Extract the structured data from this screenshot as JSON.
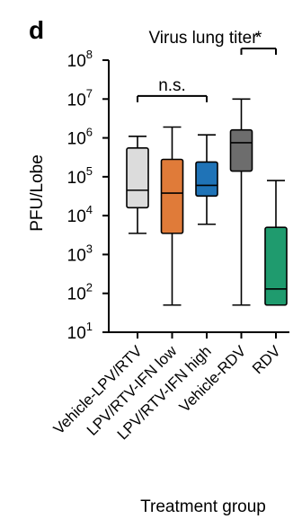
{
  "panel_label": "d",
  "chart_data": {
    "type": "box",
    "title": "Virus lung titer",
    "xlabel": "Treatment group",
    "ylabel": "PFU/Lobe",
    "yscale": "log",
    "ylim": [
      10,
      100000000
    ],
    "yticks": [
      {
        "value": 10,
        "mant": "10",
        "exp": "1"
      },
      {
        "value": 100,
        "mant": "10",
        "exp": "2"
      },
      {
        "value": 1000,
        "mant": "10",
        "exp": "3"
      },
      {
        "value": 10000,
        "mant": "10",
        "exp": "4"
      },
      {
        "value": 100000,
        "mant": "10",
        "exp": "5"
      },
      {
        "value": 1000000,
        "mant": "10",
        "exp": "6"
      },
      {
        "value": 10000000,
        "mant": "10",
        "exp": "7"
      },
      {
        "value": 100000000,
        "mant": "10",
        "exp": "8"
      }
    ],
    "categories": [
      "Vehicle-LPV/RTV",
      "LPV/RTV-IFN low",
      "LPV/RTV-IFN high",
      "Vehicle-RDV",
      "RDV"
    ],
    "boxes": [
      {
        "name": "Vehicle-LPV/RTV",
        "min": 3500,
        "q1": 16000,
        "median": 45000,
        "q3": 550000,
        "max": 1100000,
        "color": "#dcdcdc"
      },
      {
        "name": "LPV/RTV-IFN low",
        "min": 50,
        "q1": 3500,
        "median": 38000,
        "q3": 280000,
        "max": 1900000,
        "color": "#e07b39"
      },
      {
        "name": "LPV/RTV-IFN high",
        "min": 6000,
        "q1": 32000,
        "median": 60000,
        "q3": 240000,
        "max": 1200000,
        "color": "#1f73b7"
      },
      {
        "name": "Vehicle-RDV",
        "min": 50,
        "q1": 140000,
        "median": 750000,
        "q3": 1600000,
        "max": 10000000,
        "color": "#6d6d6d"
      },
      {
        "name": "RDV",
        "min": 50,
        "q1": 50,
        "median": 130,
        "q3": 5000,
        "max": 80000,
        "color": "#1f9b6e"
      }
    ],
    "annotations": [
      {
        "label": "n.s.",
        "from": "Vehicle-LPV/RTV",
        "to": "LPV/RTV-IFN high",
        "at": 12000000
      },
      {
        "label": "*",
        "from": "Vehicle-RDV",
        "to": "RDV",
        "at": 200000000
      }
    ],
    "grid": false,
    "legend": "none"
  }
}
